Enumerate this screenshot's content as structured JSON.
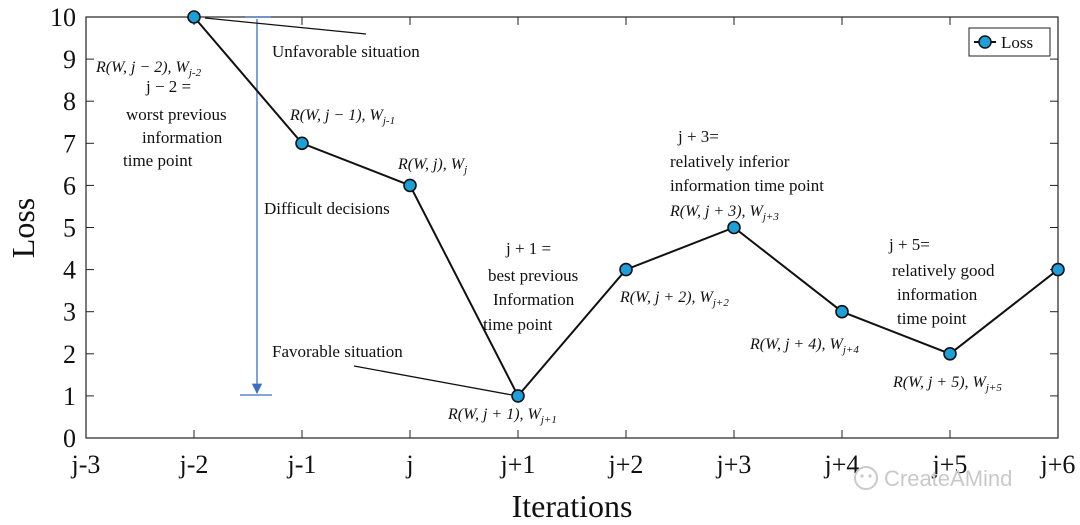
{
  "chart_data": {
    "type": "line",
    "title": "",
    "xlabel": "Iterations",
    "ylabel": "Loss",
    "categories": [
      "j-3",
      "j-2",
      "j-1",
      "j",
      "j+1",
      "j+2",
      "j+3",
      "j+4",
      "j+5",
      "j+6"
    ],
    "ylim": [
      0,
      10
    ],
    "yticks": [
      0,
      1,
      2,
      3,
      4,
      5,
      6,
      7,
      8,
      9,
      10
    ],
    "grid": false,
    "legend_position": "top-right",
    "series": [
      {
        "name": "Loss",
        "color": "#1ba1d8",
        "x": [
          "j-2",
          "j-1",
          "j",
          "j+1",
          "j+2",
          "j+3",
          "j+4",
          "j+5",
          "j+6"
        ],
        "values": [
          10,
          7,
          6,
          1,
          4,
          5,
          3,
          2,
          4
        ]
      }
    ],
    "point_labels": [
      "R(W, j − 2), W",
      "R(W, j − 1), W",
      "R(W, j), W",
      "R(W, j + 1), W",
      "R(W, j + 2), W",
      "R(W, j + 3), W",
      "R(W, j + 4), W",
      "R(W, j + 5), W"
    ],
    "point_label_subscripts": [
      "j-2",
      "j-1",
      "j",
      "j+1",
      "j+2",
      "j+3",
      "j+4",
      "j+5"
    ],
    "annotations": {
      "unfavorable": "Unfavorable situation",
      "favorable": "Favorable situation",
      "difficult": "Difficult decisions",
      "worst_line1": "j − 2 =",
      "worst_line2": "worst previous",
      "worst_line3": "information",
      "worst_line4": "time point",
      "best_line1": "j + 1 =",
      "best_line2": "best previous",
      "best_line3": "Information",
      "best_line4": "time point",
      "inferior_line1": "j + 3=",
      "inferior_line2": "relatively inferior",
      "inferior_line3": "information time point",
      "good_line1": "j + 5=",
      "good_line2": "relatively good",
      "good_line3": "information",
      "good_line4": "time point"
    },
    "watermark": "CreateAMind"
  }
}
